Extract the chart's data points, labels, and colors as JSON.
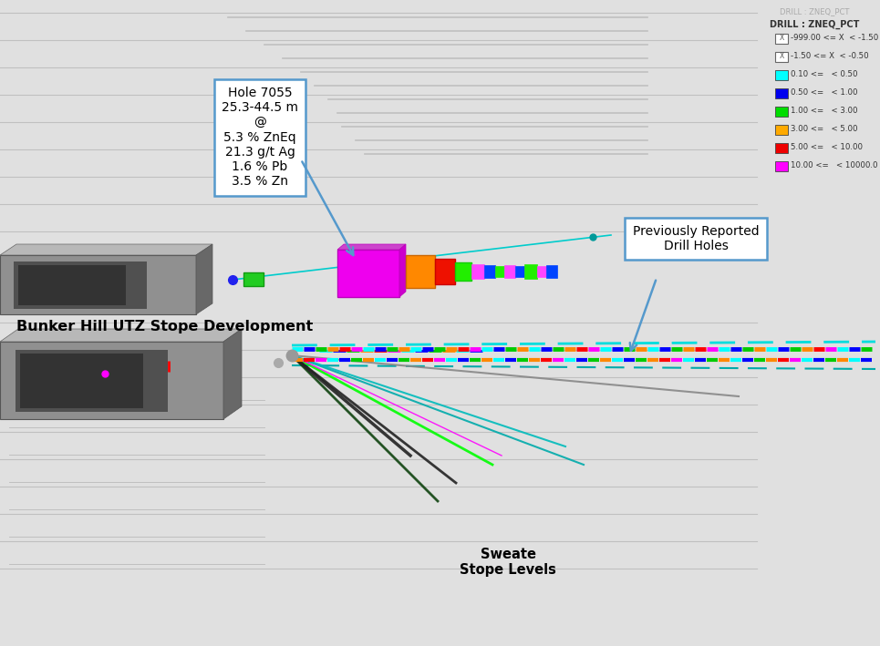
{
  "background_color": "#e0e0e0",
  "legend_title_dim": "DRILL : ZNEQ_PCT",
  "legend_title_bold": "DRILL : ZNEQ_PCT",
  "legend_colors": [
    "none",
    "none",
    "#00ffff",
    "#0000ee",
    "#00dd00",
    "#ffaa00",
    "#ee0000",
    "#ff00ff"
  ],
  "legend_labels": [
    "-999.00 <= X  < -1.50",
    "-1.50 <= X  < -0.50",
    "0.10 <=   < 0.50",
    "0.50 <=   < 1.00",
    "1.00 <=   < 3.00",
    "3.00 <=   < 5.00",
    "5.00 <=   < 10.00",
    "10.00 <=   < 10000.0"
  ],
  "annotation_text": "Hole 7055\n25.3-44.5 m\n@\n5.3 % ZnEq\n21.3 g/t Ag\n1.6 % Pb\n3.5 % Zn",
  "prev_drill_text": "Previously Reported\nDrill Holes",
  "bunker_label": "Bunker Hill UTZ Stope Development",
  "sweate_label": "Sweate\nStope Levels",
  "grid_color": "#c0c0c0",
  "arrow_color": "#5599cc"
}
